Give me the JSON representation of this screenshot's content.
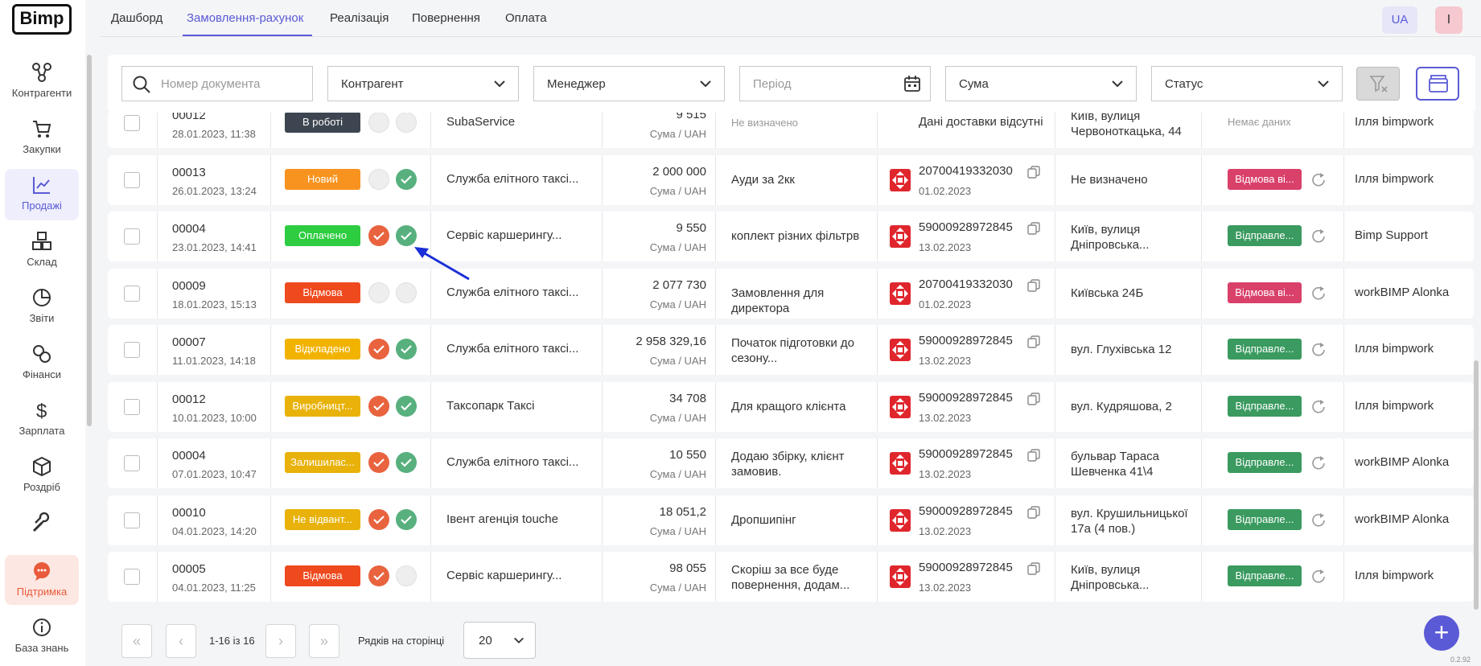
{
  "app": {
    "logo": "Bimp",
    "version": "0.2.92"
  },
  "sidebar": {
    "items": [
      {
        "label": "Контрагенти",
        "icon": "contractors-icon"
      },
      {
        "label": "Закупки",
        "icon": "cart-icon"
      },
      {
        "label": "Продажі",
        "icon": "sales-chart-icon",
        "active": true
      },
      {
        "label": "Склад",
        "icon": "warehouse-icon"
      },
      {
        "label": "Звіти",
        "icon": "reports-pie-icon"
      },
      {
        "label": "Фінанси",
        "icon": "finance-coins-icon"
      },
      {
        "label": "Зарплата",
        "icon": "salary-dollar-icon"
      },
      {
        "label": "Роздріб",
        "icon": "retail-box-icon"
      },
      {
        "label": "",
        "icon": "wrench-icon"
      },
      {
        "label": "Підтримка",
        "icon": "support-chat-icon"
      },
      {
        "label": "База знань",
        "icon": "info-icon"
      }
    ]
  },
  "tabs": [
    {
      "label": "Дашборд"
    },
    {
      "label": "Замовлення-рахунок",
      "active": true
    },
    {
      "label": "Реалізація"
    },
    {
      "label": "Повернення"
    },
    {
      "label": "Оплата"
    }
  ],
  "header": {
    "lang": "UA",
    "user": "I"
  },
  "filters": {
    "doc_number_placeholder": "Номер документа",
    "counterparty": "Контрагент",
    "manager": "Менеджер",
    "period_placeholder": "Період",
    "sum": "Сума",
    "status": "Статус"
  },
  "currency_label": "Сума",
  "currency_code": "UAH",
  "rows": [
    {
      "num": "00012",
      "date": "28.01.2023, 11:38",
      "status": "В роботі",
      "status_color": "#3d4550",
      "dot1": "grey",
      "dot2": "grey",
      "counterparty": "SubaService",
      "amount": "9 515",
      "comment": "Не визначено",
      "comment_muted": true,
      "ttn": "",
      "ttn_date": "",
      "no_delivery": "Дані доставки відсутні",
      "address": "Київ, вулиця Червоноткацька, 44",
      "dstatus": "",
      "dstatus_color": "",
      "no_data": "Немає даних",
      "manager": "Ілля bimpwork"
    },
    {
      "num": "00013",
      "date": "26.01.2023, 13:24",
      "status": "Новий",
      "status_color": "#f7931e",
      "dot1": "grey",
      "dot2": "green",
      "counterparty": "Служба елітного таксі...",
      "amount": "2 000 000",
      "comment": "Ауди за 2кк",
      "ttn": "20700419332030",
      "ttn_date": "01.02.2023",
      "address": "Не визначено",
      "address_muted": true,
      "dstatus": "Відмова ві...",
      "dstatus_color": "#d9416a",
      "manager": "Ілля bimpwork"
    },
    {
      "num": "00004",
      "date": "23.01.2023, 14:41",
      "status": "Оплачено",
      "status_color": "#2ecc40",
      "dot1": "red",
      "dot2": "green",
      "counterparty": "Сервіс каршерингу...",
      "amount": "9 550",
      "comment": "коплект різних фільтрв",
      "ttn": "59000928972845",
      "ttn_date": "13.02.2023",
      "address": "Київ, вулиця Дніпровська...",
      "dstatus": "Відправле...",
      "dstatus_color": "#3a9a5f",
      "manager": "Bimp Support"
    },
    {
      "num": "00009",
      "date": "18.01.2023, 15:13",
      "status": "Відмова",
      "status_color": "#ee4a1e",
      "dot1": "grey",
      "dot2": "grey",
      "counterparty": "Служба елітного таксі...",
      "amount": "2 077 730",
      "comment": "Замовлення для директора",
      "ttn": "20700419332030",
      "ttn_date": "01.02.2023",
      "address": "Київська 24Б",
      "dstatus": "Відмова ві...",
      "dstatus_color": "#d9416a",
      "manager": "workBIMP Alonka"
    },
    {
      "num": "00007",
      "date": "11.01.2023, 14:18",
      "status": "Відкладено",
      "status_color": "#f2b300",
      "dot1": "red",
      "dot2": "green",
      "counterparty": "Служба елітного таксі...",
      "amount": "2 958 329,16",
      "comment": "Початок підготовки до сезону...",
      "ttn": "59000928972845",
      "ttn_date": "13.02.2023",
      "address": "вул. Глухівська 12",
      "dstatus": "Відправле...",
      "dstatus_color": "#3a9a5f",
      "manager": "Ілля bimpwork"
    },
    {
      "num": "00012",
      "date": "10.01.2023, 10:00",
      "status": "Виробницт...",
      "status_color": "#e8b20a",
      "dot1": "red",
      "dot2": "green",
      "counterparty": "Таксопарк Таксі",
      "amount": "34 708",
      "comment": "Для кращого клієнта",
      "ttn": "59000928972845",
      "ttn_date": "13.02.2023",
      "address": "вул. Кудряшова, 2",
      "dstatus": "Відправле...",
      "dstatus_color": "#3a9a5f",
      "manager": "Ілля bimpwork"
    },
    {
      "num": "00004",
      "date": "07.01.2023, 10:47",
      "status": "Залишилас...",
      "status_color": "#e8b20a",
      "dot1": "red",
      "dot2": "green",
      "counterparty": "Служба елітного таксі...",
      "amount": "10 550",
      "comment": "Додаю збірку, клієнт замовив.",
      "ttn": "59000928972845",
      "ttn_date": "13.02.2023",
      "address": "бульвар Тараса Шевченка 41\\4",
      "dstatus": "Відправле...",
      "dstatus_color": "#3a9a5f",
      "manager": "workBIMP Alonka"
    },
    {
      "num": "00010",
      "date": "04.01.2023, 14:20",
      "status": "Не відвант...",
      "status_color": "#e8b20a",
      "dot1": "red",
      "dot2": "green",
      "counterparty": "Івент агенція touche",
      "amount": "18 051,2",
      "comment": "Дропшипінг",
      "ttn": "59000928972845",
      "ttn_date": "13.02.2023",
      "address": "вул. Крушильницької 17а (4 пов.)",
      "dstatus": "Відправле...",
      "dstatus_color": "#3a9a5f",
      "manager": "workBIMP Alonka"
    },
    {
      "num": "00005",
      "date": "04.01.2023, 11:25",
      "status": "Відмова",
      "status_color": "#ee4a1e",
      "dot1": "red",
      "dot2": "grey",
      "counterparty": "Сервіс каршерингу...",
      "amount": "98 055",
      "comment": "Скоріш за все буде повернення, додам...",
      "ttn": "59000928972845",
      "ttn_date": "13.02.2023",
      "address": "Київ, вулиця Дніпровська...",
      "dstatus": "Відправле...",
      "dstatus_color": "#3a9a5f",
      "manager": "Ілля bimpwork"
    }
  ],
  "pagination": {
    "range": "1-16 із 16",
    "rows_per_page_label": "Рядків на сторінці",
    "rows_per_page": "20"
  },
  "colors": {
    "accent": "#5a5ad6",
    "red_dot": "#e8633e",
    "green_dot": "#57b07d",
    "nova_poshta": "#e0262d"
  }
}
